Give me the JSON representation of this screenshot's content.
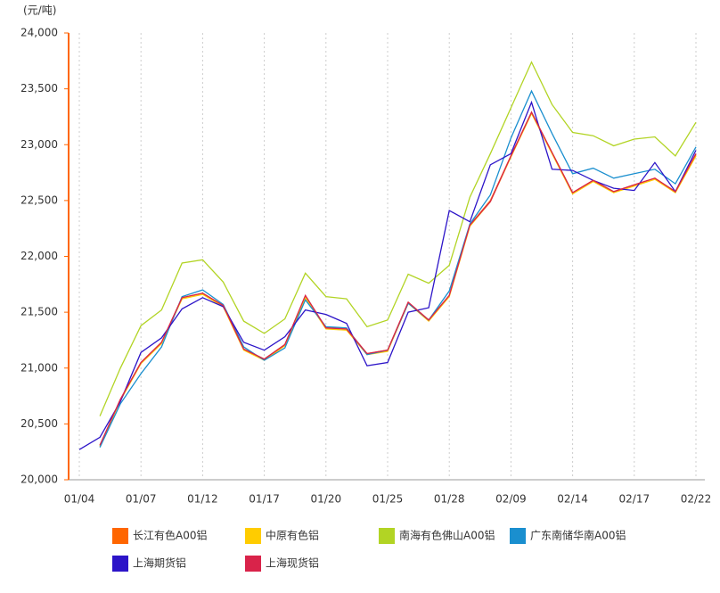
{
  "chart_data": {
    "type": "line",
    "y_label": "(元/吨)",
    "categories": [
      "01/04",
      null,
      null,
      "01/07",
      null,
      null,
      "01/12",
      null,
      null,
      "01/17",
      null,
      null,
      "01/20",
      null,
      null,
      "01/25",
      null,
      null,
      "01/28",
      null,
      null,
      "02/09",
      null,
      null,
      "02/14",
      null,
      null,
      "02/17",
      null,
      null,
      "02/22"
    ],
    "ylim": [
      20000,
      24000
    ],
    "yticks": [
      {
        "value": 20000,
        "label": "20,000"
      },
      {
        "value": 20500,
        "label": "20,500"
      },
      {
        "value": 21000,
        "label": "21,000"
      },
      {
        "value": 21500,
        "label": "21,500"
      },
      {
        "value": 22000,
        "label": "22,000"
      },
      {
        "value": 22500,
        "label": "22,500"
      },
      {
        "value": 23000,
        "label": "23,000"
      },
      {
        "value": 23500,
        "label": "23,500"
      },
      {
        "value": 24000,
        "label": "24,000"
      }
    ],
    "grid": true,
    "series": [
      {
        "name": "长江有色A00铝",
        "color": "#ff6600",
        "values": [
          null,
          20300,
          20720,
          21050,
          21230,
          21630,
          21670,
          21560,
          21170,
          21080,
          21210,
          21640,
          21360,
          21350,
          21130,
          21160,
          21590,
          21430,
          21650,
          22280,
          22500,
          22900,
          23290,
          22930,
          22570,
          22680,
          22580,
          22640,
          22700,
          22580,
          22910
        ]
      },
      {
        "name": "中原有色铝",
        "color": "#ffcc00",
        "values": [
          null,
          20300,
          20710,
          21040,
          21220,
          21620,
          21660,
          21550,
          21160,
          21070,
          21200,
          21630,
          21350,
          21340,
          21120,
          21150,
          21580,
          21420,
          21640,
          22270,
          22490,
          22890,
          23280,
          22920,
          22560,
          22670,
          22570,
          22630,
          22690,
          22570,
          22900
        ]
      },
      {
        "name": "南海有色佛山A00铝",
        "color": "#b2d424",
        "values": [
          null,
          20570,
          21000,
          21380,
          21520,
          21940,
          21970,
          21770,
          21420,
          21310,
          21440,
          21850,
          21640,
          21620,
          21370,
          21430,
          21840,
          21760,
          21920,
          22530,
          22920,
          23330,
          23740,
          23360,
          23110,
          23080,
          22990,
          23050,
          23070,
          22900,
          23200
        ]
      },
      {
        "name": "广东南储华南A00铝",
        "color": "#1a8fcf",
        "values": [
          null,
          20290,
          20680,
          20950,
          21190,
          21640,
          21700,
          21570,
          21190,
          21070,
          21180,
          21610,
          21370,
          21360,
          21120,
          21160,
          21580,
          21430,
          21690,
          22290,
          22550,
          23060,
          23480,
          23100,
          22740,
          22790,
          22700,
          22740,
          22780,
          22650,
          22980
        ]
      },
      {
        "name": "上海期货铝",
        "color": "#2c14c8",
        "values": [
          20270,
          20380,
          20700,
          21140,
          21270,
          21530,
          21630,
          21550,
          21230,
          21160,
          21280,
          21520,
          21480,
          21400,
          21020,
          21050,
          21500,
          21540,
          22410,
          22310,
          22820,
          22920,
          23380,
          22780,
          22770,
          22680,
          22610,
          22590,
          22840,
          22580,
          22950
        ]
      },
      {
        "name": "上海现货铝",
        "color": "#d9234a",
        "values": [
          null,
          20310,
          20720,
          21050,
          21230,
          21630,
          21670,
          21560,
          21170,
          21080,
          21210,
          21650,
          21360,
          21350,
          21130,
          21160,
          21590,
          21430,
          21650,
          22280,
          22490,
          22900,
          23290,
          22930,
          22570,
          22680,
          22580,
          22640,
          22700,
          22580,
          22920
        ]
      }
    ]
  }
}
